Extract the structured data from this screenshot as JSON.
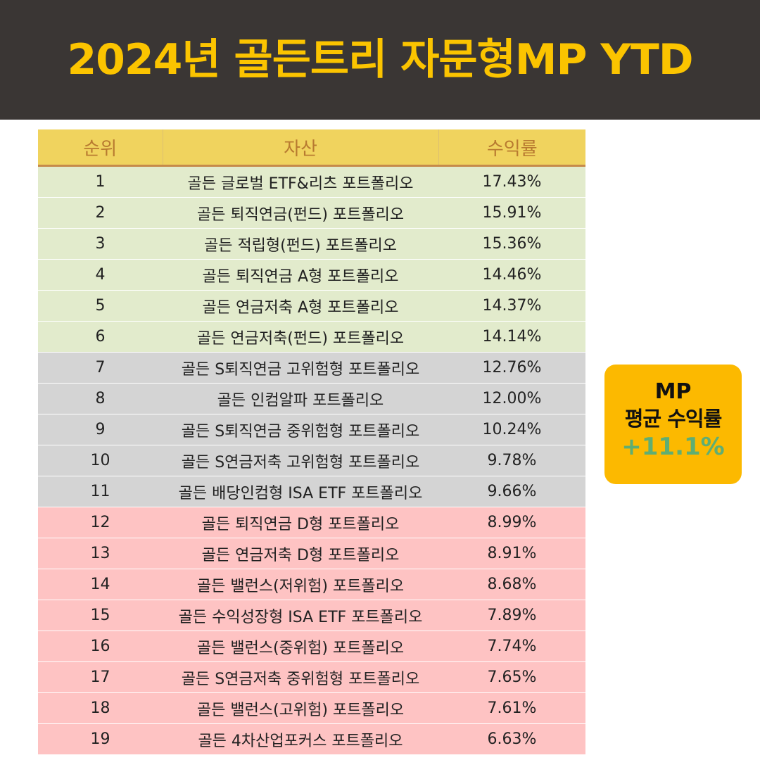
{
  "title": "2024년 골든트리 자문형MP YTD",
  "table": {
    "headers": {
      "rank": "순위",
      "asset": "자산",
      "return": "수익률"
    },
    "rows": [
      {
        "rank": "1",
        "asset": "골든 글로벌 ETF&리츠 포트폴리오",
        "return": "17.43%",
        "tier": "top"
      },
      {
        "rank": "2",
        "asset": "골든 퇴직연금(펀드) 포트폴리오",
        "return": "15.91%",
        "tier": "top"
      },
      {
        "rank": "3",
        "asset": "골든 적립형(펀드) 포트폴리오",
        "return": "15.36%",
        "tier": "top"
      },
      {
        "rank": "4",
        "asset": "골든 퇴직연금 A형 포트폴리오",
        "return": "14.46%",
        "tier": "top"
      },
      {
        "rank": "5",
        "asset": "골든 연금저축 A형 포트폴리오",
        "return": "14.37%",
        "tier": "top"
      },
      {
        "rank": "6",
        "asset": "골든 연금저축(펀드) 포트폴리오",
        "return": "14.14%",
        "tier": "top"
      },
      {
        "rank": "7",
        "asset": "골든 S퇴직연금 고위험형 포트폴리오",
        "return": "12.76%",
        "tier": "mid"
      },
      {
        "rank": "8",
        "asset": "골든 인컴알파 포트폴리오",
        "return": "12.00%",
        "tier": "mid"
      },
      {
        "rank": "9",
        "asset": "골든 S퇴직연금 중위험형 포트폴리오",
        "return": "10.24%",
        "tier": "mid"
      },
      {
        "rank": "10",
        "asset": "골든 S연금저축 고위험형 포트폴리오",
        "return": "9.78%",
        "tier": "mid"
      },
      {
        "rank": "11",
        "asset": "골든 배당인컴형 ISA ETF 포트폴리오",
        "return": "9.66%",
        "tier": "mid"
      },
      {
        "rank": "12",
        "asset": "골든 퇴직연금 D형 포트폴리오",
        "return": "8.99%",
        "tier": "low"
      },
      {
        "rank": "13",
        "asset": "골든 연금저축 D형 포트폴리오",
        "return": "8.91%",
        "tier": "low"
      },
      {
        "rank": "14",
        "asset": "골든 밸런스(저위험) 포트폴리오",
        "return": "8.68%",
        "tier": "low"
      },
      {
        "rank": "15",
        "asset": "골든 수익성장형 ISA ETF 포트폴리오",
        "return": "7.89%",
        "tier": "low"
      },
      {
        "rank": "16",
        "asset": "골든 밸런스(중위험) 포트폴리오",
        "return": "7.74%",
        "tier": "low"
      },
      {
        "rank": "17",
        "asset": "골든 S연금저축 중위험형 포트폴리오",
        "return": "7.65%",
        "tier": "low"
      },
      {
        "rank": "18",
        "asset": "골든 밸런스(고위험) 포트폴리오",
        "return": "7.61%",
        "tier": "low"
      },
      {
        "rank": "19",
        "asset": "골든 4차산업포커스 포트폴리오",
        "return": "6.63%",
        "tier": "low"
      }
    ]
  },
  "average_card": {
    "line1": "MP",
    "line2": "평균 수익률",
    "value": "+11.1%"
  },
  "colors": {
    "title": "#fbc400",
    "header_bg": "#3a3634",
    "tier_top": "#e2ebcc",
    "tier_mid": "#d4d4d4",
    "tier_low": "#fec3c3",
    "card_bg": "#fcb900",
    "card_value": "#5fae73"
  }
}
